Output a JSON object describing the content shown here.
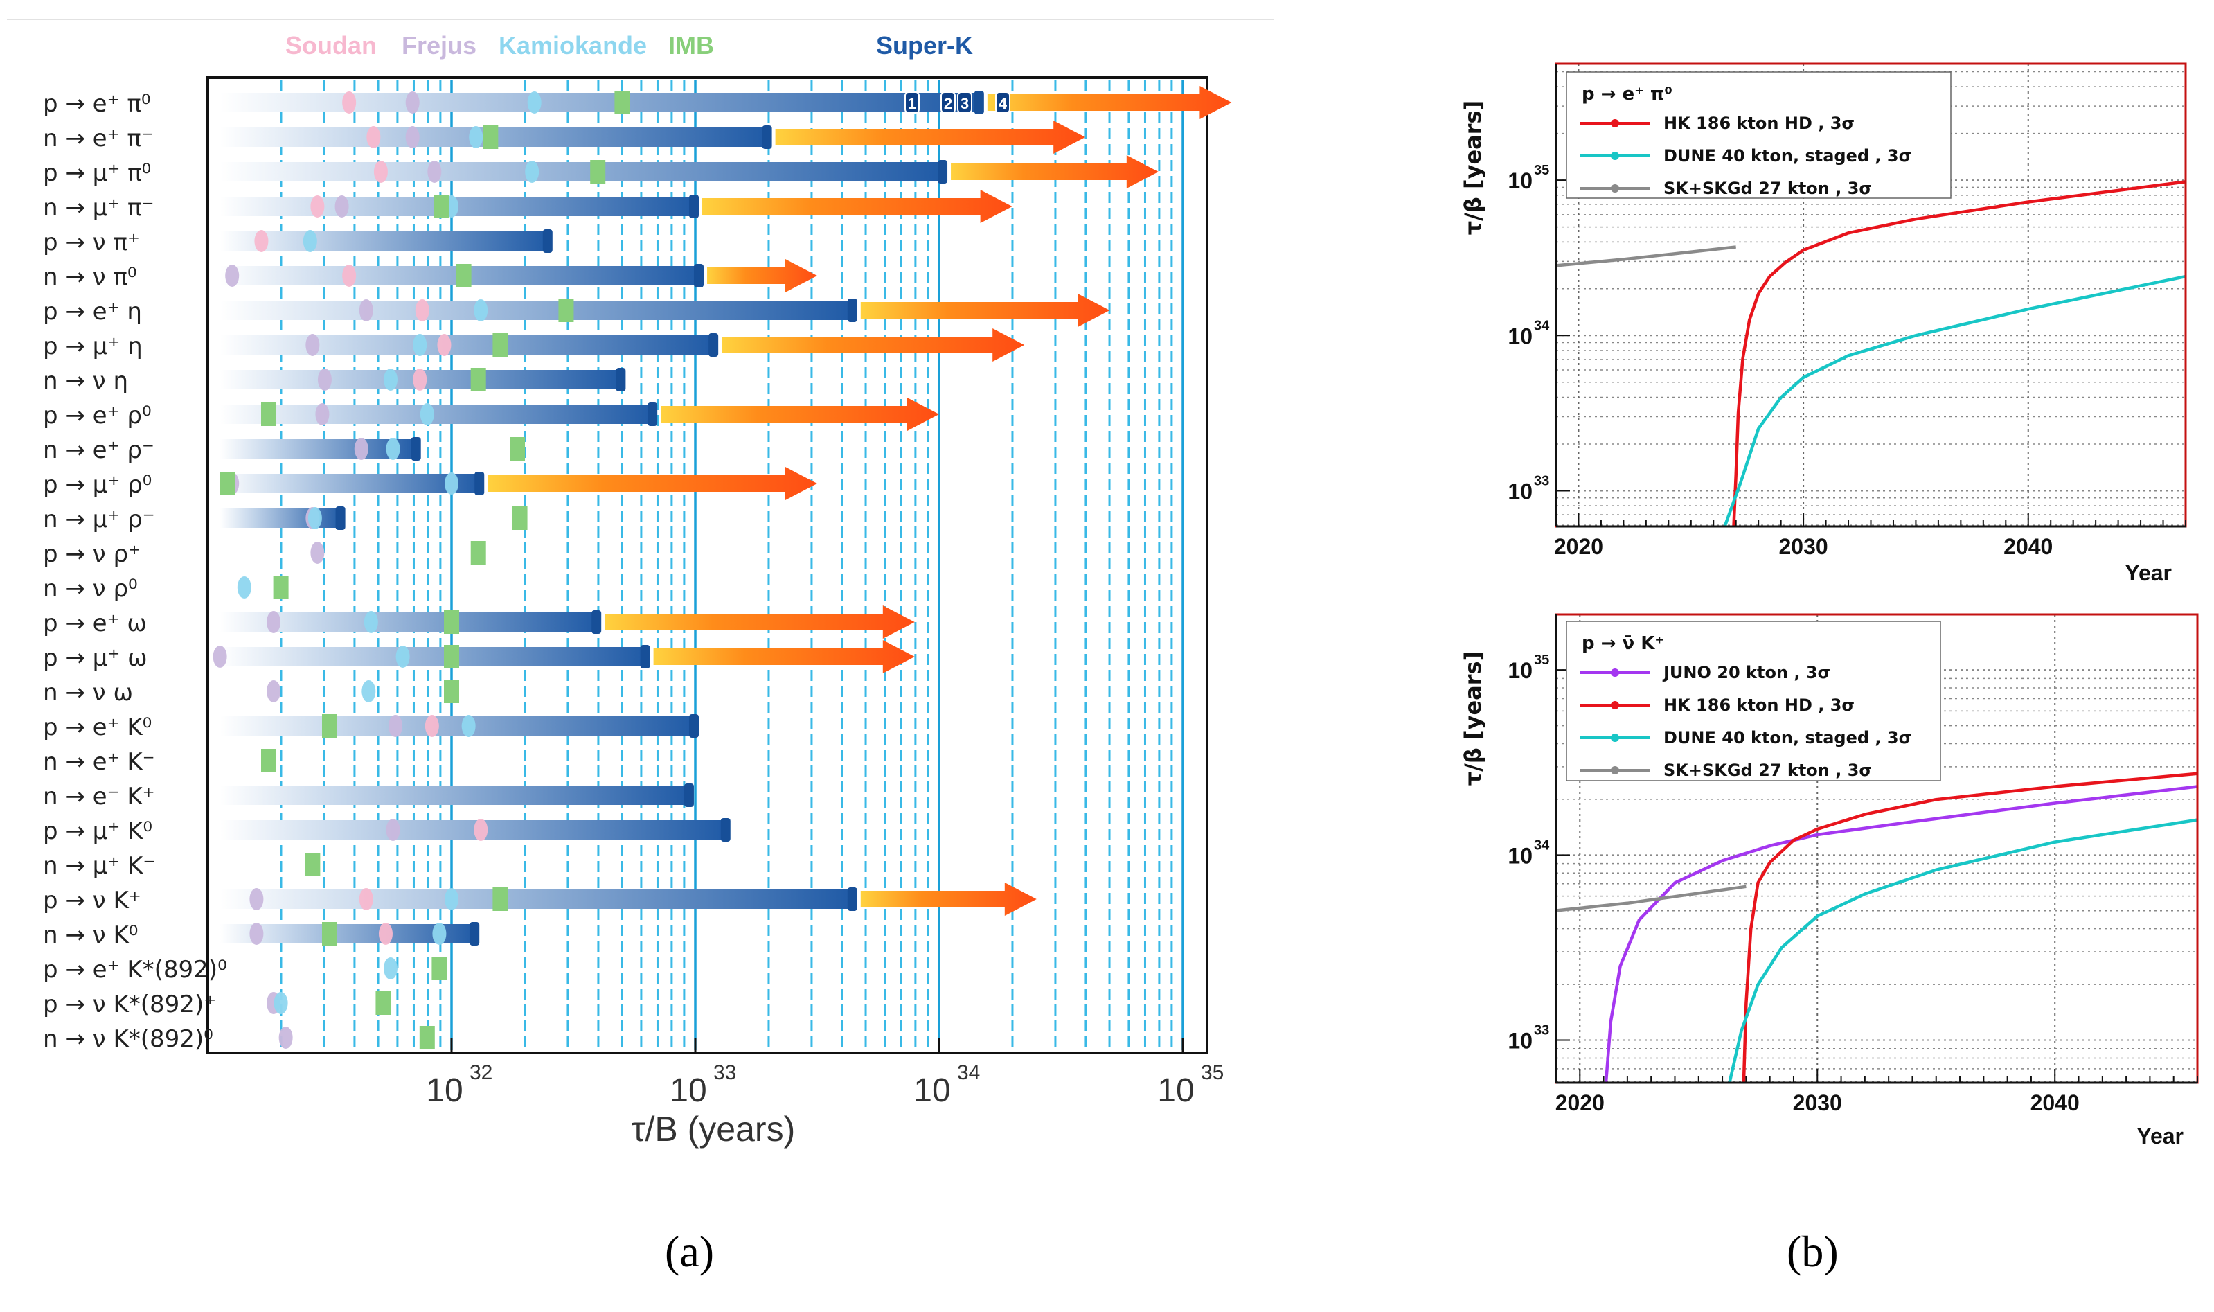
{
  "captions": {
    "a": "(a)",
    "b": "(b)"
  },
  "colors": {
    "soudan": "#f7b8cf",
    "frejus": "#c9b8dd",
    "kamiokande": "#8ed6ef",
    "imb": "#88cf7a",
    "superk_dark": "#1f5aa6",
    "superk_light": "#dde9f5",
    "arrow_start": "#ffd23f",
    "arrow_end": "#ff4d14",
    "red": "#e8141c",
    "cyan": "#18c6c6",
    "gray": "#8a8a8a",
    "purple": "#a437f0"
  },
  "chart_data": [
    {
      "type": "bar",
      "title": "",
      "xlabel": "τ/B (years)",
      "xscale": "log",
      "xlim_exp": [
        31,
        35
      ],
      "xticks": [
        {
          "label": "10",
          "exp": "32",
          "v": 32
        },
        {
          "label": "10",
          "exp": "33",
          "v": 33
        },
        {
          "label": "10",
          "exp": "34",
          "v": 34
        },
        {
          "label": "10",
          "exp": "35",
          "v": 35
        }
      ],
      "legend": [
        "Soudan",
        "Frejus",
        "Kamiokande",
        "IMB",
        "Super-K"
      ],
      "superk_marks": [
        "1",
        "2",
        "3",
        "4"
      ],
      "modes": [
        {
          "label": "p → e⁺ π⁰",
          "bar": 34.17,
          "arrow": 35.2,
          "s": 31.58,
          "f": 31.84,
          "k": 32.34,
          "i": 32.7
        },
        {
          "label": "n → e⁺ π⁻",
          "bar": 33.3,
          "arrow": 34.6,
          "s": 31.68,
          "f": 31.84,
          "k": 32.1,
          "i": 32.16
        },
        {
          "label": "p → μ⁺ π⁰",
          "bar": 34.02,
          "arrow": 34.9,
          "s": 31.71,
          "f": 31.93,
          "k": 32.33,
          "i": 32.6
        },
        {
          "label": "n → μ⁺ π⁻",
          "bar": 33.0,
          "arrow": 34.3,
          "s": 31.45,
          "f": 31.55,
          "k": 32.0,
          "i": 31.96
        },
        {
          "label": "p → ν π⁺",
          "bar": 32.4,
          "s": 31.22,
          "k": 31.42
        },
        {
          "label": "n → ν π⁰",
          "bar": 33.02,
          "arrow": 33.5,
          "s": 31.58,
          "f": 31.1,
          "i": 32.05
        },
        {
          "label": "p → e⁺ η",
          "bar": 33.65,
          "arrow": 34.7,
          "s": 31.88,
          "f": 31.65,
          "k": 32.12,
          "i": 32.47
        },
        {
          "label": "p → μ⁺ η",
          "bar": 33.08,
          "arrow": 34.35,
          "s": 31.97,
          "f": 31.43,
          "k": 31.87,
          "i": 32.2
        },
        {
          "label": "n → ν η",
          "bar": 32.7,
          "s": 31.87,
          "f": 31.48,
          "k": 31.75,
          "i": 32.11
        },
        {
          "label": "p → e⁺ ρ⁰",
          "bar": 32.83,
          "arrow": 34.0,
          "f": 31.47,
          "k": 31.9,
          "i": 31.25
        },
        {
          "label": "n → e⁺ ρ⁻",
          "bar": 31.86,
          "f": 31.63,
          "k": 31.76,
          "i": 32.27
        },
        {
          "label": "p → μ⁺ ρ⁰",
          "bar": 32.12,
          "arrow": 33.5,
          "f": 31.1,
          "k": 32.0,
          "i": 31.08
        },
        {
          "label": "n → μ⁺ ρ⁻",
          "bar": 31.55,
          "f": 31.43,
          "k": 31.44,
          "i": 32.28
        },
        {
          "label": "p → ν ρ⁺",
          "f": 31.45,
          "i": 32.11
        },
        {
          "label": "n → ν ρ⁰",
          "k": 31.15,
          "i": 31.3
        },
        {
          "label": "p → e⁺ ω",
          "bar": 32.6,
          "arrow": 33.9,
          "f": 31.27,
          "k": 31.67,
          "i": 32.0
        },
        {
          "label": "p → μ⁺ ω",
          "bar": 32.8,
          "arrow": 33.9,
          "f": 31.05,
          "k": 31.8,
          "i": 32.0
        },
        {
          "label": "n → ν ω",
          "f": 31.27,
          "k": 31.66,
          "i": 32.0
        },
        {
          "label": "p → e⁺ K⁰",
          "bar": 33.0,
          "s": 31.92,
          "f": 31.77,
          "k": 32.07,
          "i": 31.5
        },
        {
          "label": "n → e⁺ K⁻",
          "i": 31.25
        },
        {
          "label": "n → e⁻ K⁺",
          "bar": 32.98
        },
        {
          "label": "p → μ⁺ K⁰",
          "bar": 33.13,
          "s": 32.12,
          "f": 31.76
        },
        {
          "label": "n → μ⁺ K⁻",
          "i": 31.43
        },
        {
          "label": "p → ν K⁺",
          "bar": 33.65,
          "arrow": 34.4,
          "s": 31.65,
          "f": 31.2,
          "k": 32.0,
          "i": 32.2
        },
        {
          "label": "n → ν K⁰",
          "bar": 32.1,
          "s": 31.73,
          "f": 31.2,
          "k": 31.95,
          "i": 31.5
        },
        {
          "label": "p → e⁺ K*(892)⁰",
          "k": 31.75,
          "i": 31.95
        },
        {
          "label": "p → ν K*(892)⁺",
          "f": 31.27,
          "k": 31.3,
          "i": 31.72
        },
        {
          "label": "n → ν K*(892)⁰",
          "f": 31.32,
          "i": 31.9
        }
      ]
    },
    {
      "type": "line",
      "title": "p → e⁺ π⁰",
      "xlabel": "Year",
      "ylabel": "τ/β [years]",
      "xlim": [
        2019,
        2047
      ],
      "ylim_exp": [
        32.77,
        35.75
      ],
      "xticks": [
        2020,
        2030,
        2040
      ],
      "yticks": [
        {
          "label": "10",
          "exp": "33",
          "v": 33
        },
        {
          "label": "10",
          "exp": "34",
          "v": 34
        },
        {
          "label": "10",
          "exp": "35",
          "v": 35
        }
      ],
      "series": [
        {
          "name": "HK 186 kton HD , 3σ",
          "color": "#e8141c",
          "x": [
            2026.9,
            2027.0,
            2027.1,
            2027.3,
            2027.6,
            2028.0,
            2028.5,
            2029.2,
            2030.0,
            2032.0,
            2035.0,
            2040.0,
            2047.0
          ],
          "y_exp": [
            32.77,
            33.1,
            33.5,
            33.85,
            34.1,
            34.27,
            34.38,
            34.47,
            34.55,
            34.66,
            34.75,
            34.86,
            34.99
          ]
        },
        {
          "name": "DUNE 40 kton, staged , 3σ",
          "color": "#18c6c6",
          "x": [
            2026.5,
            2027.2,
            2028.0,
            2029.0,
            2030.0,
            2032.0,
            2035.0,
            2040.0,
            2047.0
          ],
          "y_exp": [
            32.77,
            33.05,
            33.4,
            33.6,
            33.73,
            33.87,
            34.0,
            34.17,
            34.38
          ]
        },
        {
          "name": "SK+SKGd 27 kton , 3σ",
          "color": "#8a8a8a",
          "x": [
            2019.0,
            2022.0,
            2027.0
          ],
          "y_exp": [
            34.45,
            34.49,
            34.57
          ]
        }
      ]
    },
    {
      "type": "line",
      "title": "p → ν̄ K⁺",
      "xlabel": "Year",
      "ylabel": "τ/β [years]",
      "xlim": [
        2019,
        2046
      ],
      "ylim_exp": [
        32.77,
        35.3
      ],
      "xticks": [
        2020,
        2030,
        2040
      ],
      "yticks": [
        {
          "label": "10",
          "exp": "33",
          "v": 33
        },
        {
          "label": "10",
          "exp": "34",
          "v": 34
        },
        {
          "label": "10",
          "exp": "35",
          "v": 35
        }
      ],
      "series": [
        {
          "name": "JUNO 20 kton , 3σ",
          "color": "#a437f0",
          "x": [
            2021.1,
            2021.3,
            2021.7,
            2022.5,
            2024.0,
            2026.0,
            2028.0,
            2030.0,
            2034.0,
            2040.0,
            2046.0
          ],
          "y_exp": [
            32.77,
            33.1,
            33.4,
            33.65,
            33.85,
            33.97,
            34.05,
            34.11,
            34.18,
            34.28,
            34.37
          ]
        },
        {
          "name": "HK 186 kton HD , 3σ",
          "color": "#e8141c",
          "x": [
            2026.9,
            2027.0,
            2027.2,
            2027.5,
            2028.0,
            2029.0,
            2030.0,
            2032.0,
            2035.0,
            2040.0,
            2046.0
          ],
          "y_exp": [
            32.77,
            33.2,
            33.6,
            33.85,
            33.96,
            34.08,
            34.14,
            34.22,
            34.3,
            34.37,
            34.44
          ]
        },
        {
          "name": "DUNE 40 kton, staged , 3σ",
          "color": "#18c6c6",
          "x": [
            2026.3,
            2026.8,
            2027.5,
            2028.5,
            2030.0,
            2032.0,
            2035.0,
            2040.0,
            2046.0
          ],
          "y_exp": [
            32.77,
            33.05,
            33.3,
            33.5,
            33.67,
            33.79,
            33.92,
            34.07,
            34.19
          ]
        },
        {
          "name": "SK+SKGd 27 kton , 3σ",
          "color": "#8a8a8a",
          "x": [
            2019.0,
            2022.0,
            2027.0
          ],
          "y_exp": [
            33.7,
            33.74,
            33.83
          ]
        }
      ]
    }
  ]
}
